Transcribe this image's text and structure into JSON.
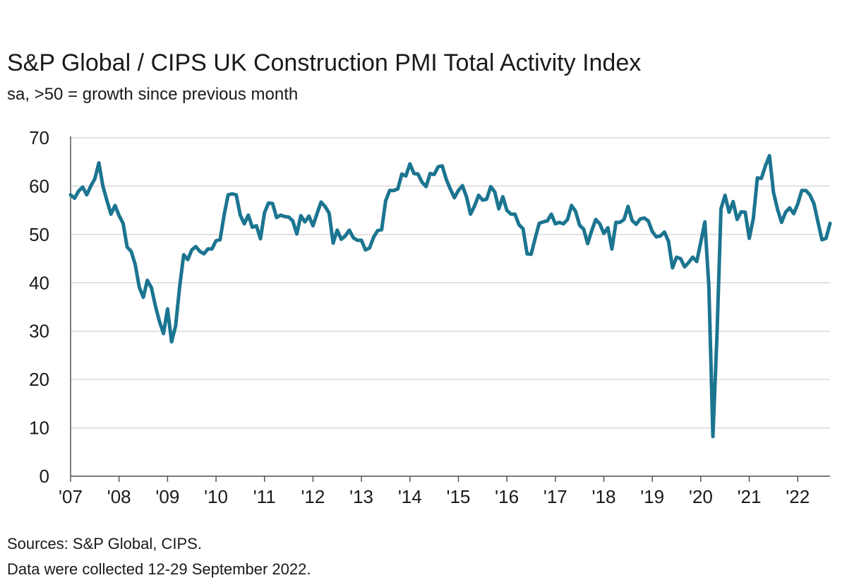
{
  "title": "S&P Global / CIPS UK Construction PMI Total Activity Index",
  "subtitle": "sa, >50 = growth since previous month",
  "footer": {
    "sources": "Sources: S&P Global, CIPS.",
    "collection": "Data were collected 12-29 September 2022."
  },
  "colors": {
    "line": "#1b7590",
    "grid": "#d9d9d9",
    "axis": "#555555",
    "text": "#1a1a1a"
  },
  "chart_data": {
    "type": "line",
    "title": "S&P Global / CIPS UK Construction PMI Total Activity Index",
    "xlabel": "",
    "ylabel": "",
    "ylim": [
      0,
      70
    ],
    "xlim": [
      "2007-01",
      "2022-09"
    ],
    "grid": true,
    "legend": "none",
    "y_ticks": [
      0,
      10,
      20,
      30,
      40,
      50,
      60,
      70
    ],
    "x_ticks": [
      {
        "label": "'07",
        "date": "2007-01"
      },
      {
        "label": "'08",
        "date": "2008-01"
      },
      {
        "label": "'09",
        "date": "2009-01"
      },
      {
        "label": "'10",
        "date": "2010-01"
      },
      {
        "label": "'11",
        "date": "2011-01"
      },
      {
        "label": "'12",
        "date": "2012-01"
      },
      {
        "label": "'13",
        "date": "2013-01"
      },
      {
        "label": "'14",
        "date": "2014-01"
      },
      {
        "label": "'15",
        "date": "2015-01"
      },
      {
        "label": "'16",
        "date": "2016-01"
      },
      {
        "label": "'17",
        "date": "2017-01"
      },
      {
        "label": "'18",
        "date": "2018-01"
      },
      {
        "label": "'19",
        "date": "2019-01"
      },
      {
        "label": "'20",
        "date": "2020-01"
      },
      {
        "label": "'21",
        "date": "2021-01"
      },
      {
        "label": "'22",
        "date": "2022-01"
      }
    ],
    "series": [
      {
        "start": "2007-01",
        "values": [
          58.2,
          57.5,
          59.0,
          59.8,
          58.2,
          60.0,
          61.5,
          64.8,
          60.0,
          57.0,
          54.2,
          56.0,
          53.9,
          52.3,
          47.4,
          46.5,
          43.8,
          39.1,
          37.0,
          40.5,
          39.0,
          35.2,
          32.0,
          29.5,
          34.6,
          27.8,
          31.1,
          39.2,
          45.8,
          44.8,
          46.8,
          47.5,
          46.5,
          46.0,
          47.0,
          47.0,
          48.7,
          48.9,
          54.0,
          58.2,
          58.4,
          58.2,
          54.0,
          52.2,
          54.0,
          51.5,
          51.8,
          49.1,
          54.5,
          56.5,
          56.4,
          53.5,
          54.0,
          53.7,
          53.6,
          52.8,
          50.1,
          53.9,
          52.6,
          53.8,
          51.8,
          54.3,
          56.7,
          55.8,
          54.4,
          48.2,
          50.9,
          49.0,
          49.7,
          50.9,
          49.3,
          48.8,
          48.8,
          46.8,
          47.2,
          49.4,
          50.8,
          51.0,
          57.0,
          59.1,
          59.1,
          59.4,
          62.5,
          62.1,
          64.6,
          62.6,
          62.5,
          60.8,
          59.9,
          62.6,
          62.4,
          64.0,
          64.2,
          61.4,
          59.4,
          57.6,
          59.1,
          60.1,
          57.8,
          54.2,
          55.9,
          58.1,
          57.1,
          57.3,
          59.9,
          58.8,
          55.3,
          57.8,
          55.0,
          54.2,
          54.2,
          52.0,
          51.2,
          46.0,
          45.9,
          49.2,
          52.3,
          52.6,
          52.8,
          54.2,
          52.2,
          52.5,
          52.2,
          53.1,
          56.0,
          54.8,
          51.9,
          51.1,
          48.1,
          50.8,
          53.1,
          52.2,
          50.2,
          51.4,
          47.0,
          52.5,
          52.5,
          53.1,
          55.8,
          52.9,
          52.1,
          53.2,
          53.4,
          52.8,
          50.6,
          49.5,
          49.7,
          50.5,
          48.6,
          43.1,
          45.3,
          45.0,
          43.3,
          44.2,
          45.3,
          44.4,
          48.4,
          52.6,
          39.3,
          8.2,
          28.9,
          55.3,
          58.1,
          54.6,
          56.8,
          53.1,
          54.7,
          54.6,
          49.2,
          53.3,
          61.7,
          61.6,
          64.2,
          66.3,
          58.7,
          55.2,
          52.5,
          54.6,
          55.5,
          54.3,
          56.3,
          59.1,
          59.1,
          58.2,
          56.4,
          52.6,
          48.9,
          49.2,
          52.3
        ]
      }
    ]
  }
}
